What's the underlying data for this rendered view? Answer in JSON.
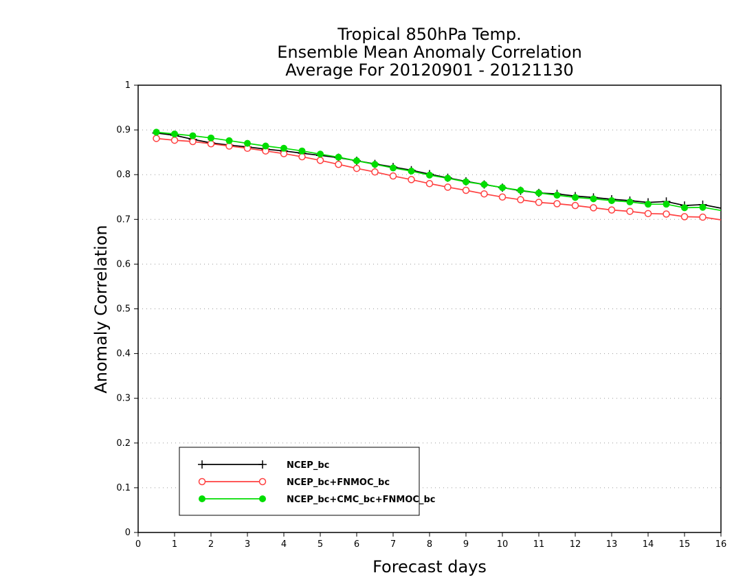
{
  "chart_data": {
    "type": "line",
    "title_lines": [
      "Tropical 850hPa Temp.",
      "Ensemble Mean Anomaly Correlation",
      "Average For 20120901 - 20121130"
    ],
    "xlabel": "Forecast days",
    "ylabel": "Anomaly Correlation",
    "xlim": [
      0,
      16
    ],
    "ylim": [
      0,
      1
    ],
    "x_ticks": [
      "0",
      "1",
      "2",
      "3",
      "4",
      "5",
      "6",
      "7",
      "8",
      "9",
      "10",
      "11",
      "12",
      "13",
      "14",
      "15",
      "16"
    ],
    "y_ticks": [
      "0",
      "0.1",
      "0.2",
      "0.3",
      "0.4",
      "0.5",
      "0.6",
      "0.7",
      "0.8",
      "0.9",
      "1"
    ],
    "grid": "horizontal dotted",
    "legend_position": "bottom-left",
    "x": [
      0.5,
      1,
      1.5,
      2,
      2.5,
      3,
      3.5,
      4,
      4.5,
      5,
      5.5,
      6,
      6.5,
      7,
      7.5,
      8,
      8.5,
      9,
      9.5,
      10,
      10.5,
      11,
      11.5,
      12,
      12.5,
      13,
      13.5,
      14,
      14.5,
      15,
      15.5,
      16
    ],
    "series": [
      {
        "name": "NCEP_bc",
        "color": "#000000",
        "marker": "plus",
        "values": [
          0.893,
          0.888,
          0.879,
          0.871,
          0.866,
          0.862,
          0.857,
          0.853,
          0.848,
          0.843,
          0.838,
          0.831,
          0.824,
          0.817,
          0.81,
          0.801,
          0.793,
          0.785,
          0.778,
          0.771,
          0.764,
          0.759,
          0.757,
          0.752,
          0.749,
          0.745,
          0.742,
          0.738,
          0.74,
          0.731,
          0.733,
          0.725
        ]
      },
      {
        "name": "NCEP_bc+FNMOC_bc",
        "color": "#ff4040",
        "marker": "open-circle",
        "values": [
          0.881,
          0.877,
          0.874,
          0.869,
          0.864,
          0.859,
          0.853,
          0.847,
          0.84,
          0.832,
          0.823,
          0.814,
          0.806,
          0.797,
          0.789,
          0.78,
          0.772,
          0.765,
          0.757,
          0.75,
          0.744,
          0.738,
          0.735,
          0.731,
          0.726,
          0.721,
          0.718,
          0.713,
          0.712,
          0.706,
          0.705,
          0.699
        ]
      },
      {
        "name": "NCEP_bc+CMC_bc+FNMOC_bc",
        "color": "#00dd00",
        "marker": "filled-circle",
        "values": [
          0.895,
          0.891,
          0.887,
          0.882,
          0.876,
          0.87,
          0.864,
          0.859,
          0.853,
          0.846,
          0.839,
          0.831,
          0.823,
          0.815,
          0.808,
          0.799,
          0.792,
          0.784,
          0.778,
          0.771,
          0.765,
          0.759,
          0.754,
          0.749,
          0.746,
          0.742,
          0.739,
          0.734,
          0.734,
          0.726,
          0.727,
          0.72
        ]
      }
    ]
  }
}
